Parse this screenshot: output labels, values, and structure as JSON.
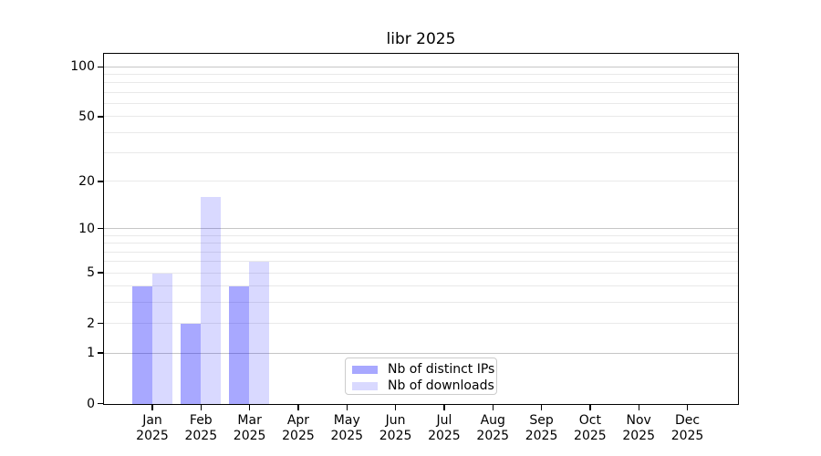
{
  "title": "libr 2025",
  "chart_data": {
    "type": "bar",
    "title": "libr 2025",
    "categories": [
      "Jan",
      "Feb",
      "Mar",
      "Apr",
      "May",
      "Jun",
      "Jul",
      "Aug",
      "Sep",
      "Oct",
      "Nov",
      "Dec"
    ],
    "category_year": "2025",
    "series": [
      {
        "name": "Nb of distinct IPs",
        "color": "rgba(0,0,255,0.34)",
        "values": [
          4,
          2,
          4,
          0,
          0,
          0,
          0,
          0,
          0,
          0,
          0,
          0
        ]
      },
      {
        "name": "Nb of downloads",
        "color": "rgba(0,0,255,0.15)",
        "values": [
          5,
          16,
          6,
          0,
          0,
          0,
          0,
          0,
          0,
          0,
          0,
          0
        ]
      }
    ],
    "xlabel": "",
    "ylabel": "",
    "y_axis": {
      "scale": "log1p",
      "tick_values": [
        0,
        1,
        2,
        5,
        10,
        20,
        50,
        100
      ],
      "major_gridlines": [
        1,
        10,
        100
      ],
      "minor_gridlines": [
        2,
        3,
        4,
        5,
        6,
        7,
        8,
        9,
        20,
        30,
        40,
        50,
        60,
        70,
        80,
        90
      ],
      "ylim": [
        0,
        119
      ]
    },
    "grid": "horizontal",
    "legend_position": "lower center"
  },
  "colors": {
    "bar_distinct_ips": "rgba(0,0,255,0.34)",
    "bar_downloads": "rgba(0,0,255,0.15)",
    "grid_minor": "#e9e9e9",
    "grid_major": "#c6c6c6",
    "axis": "#000000",
    "legend_border": "#cccccc",
    "background": "#ffffff"
  }
}
